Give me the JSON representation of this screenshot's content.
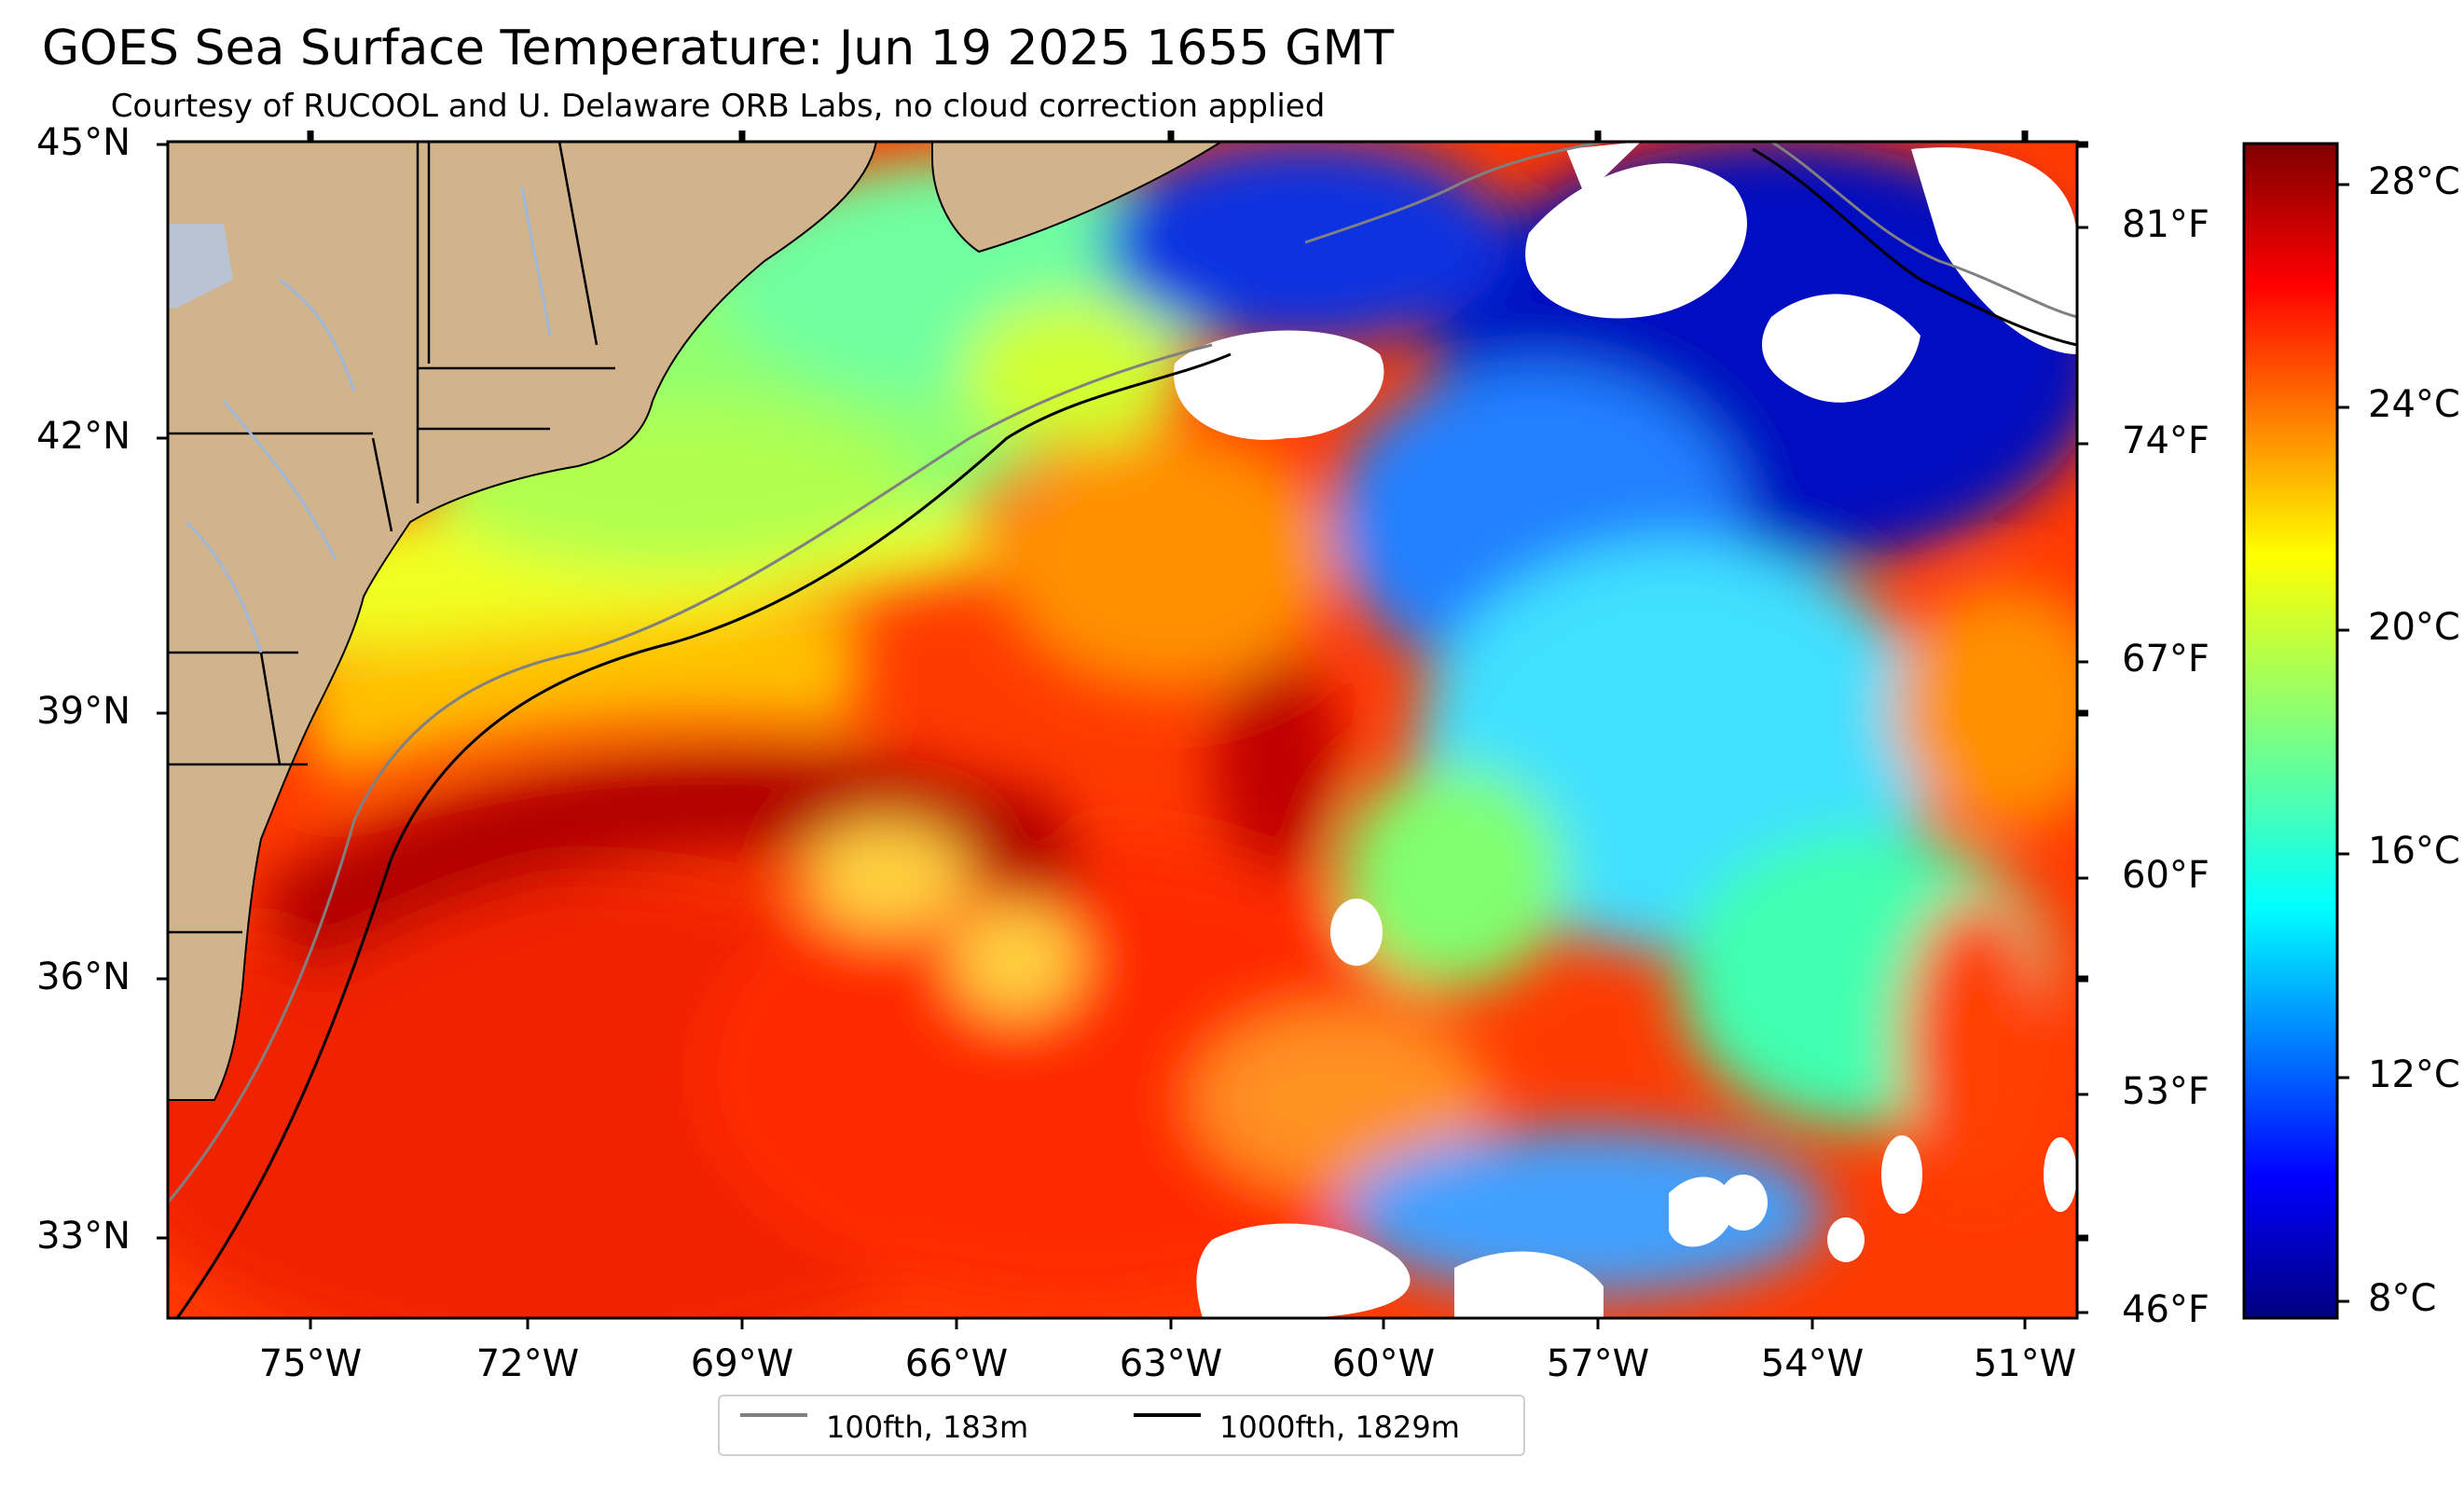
{
  "title": "GOES Sea Surface Temperature: Jun 19 2025 1655 GMT",
  "subtitle": "Courtesy of RUCOOL and U. Delaware ORB Labs, no cloud correction applied",
  "lat_labels": [
    "45°N",
    "42°N",
    "39°N",
    "36°N",
    "33°N"
  ],
  "lon_labels": [
    "75°W",
    "72°W",
    "69°W",
    "66°W",
    "63°W",
    "60°W",
    "57°W",
    "54°W",
    "51°W"
  ],
  "fahrenheit_labels": [
    "81°F",
    "74°F",
    "67°F",
    "60°F",
    "53°F",
    "46°F"
  ],
  "celsius_labels": [
    "28°C",
    "24°C",
    "20°C",
    "16°C",
    "12°C",
    "8°C"
  ],
  "colorbar": {
    "min_c": 7.5,
    "max_c": 28.5,
    "colormap": "jet"
  },
  "legend": [
    {
      "label": "100fth, 183m",
      "color": "#808080"
    },
    {
      "label": "1000fth, 1829m",
      "color": "#000000"
    }
  ],
  "colors": {
    "land": "#d2b48c",
    "lakes": "#b8c4d4",
    "cloud": "#ffffff"
  }
}
